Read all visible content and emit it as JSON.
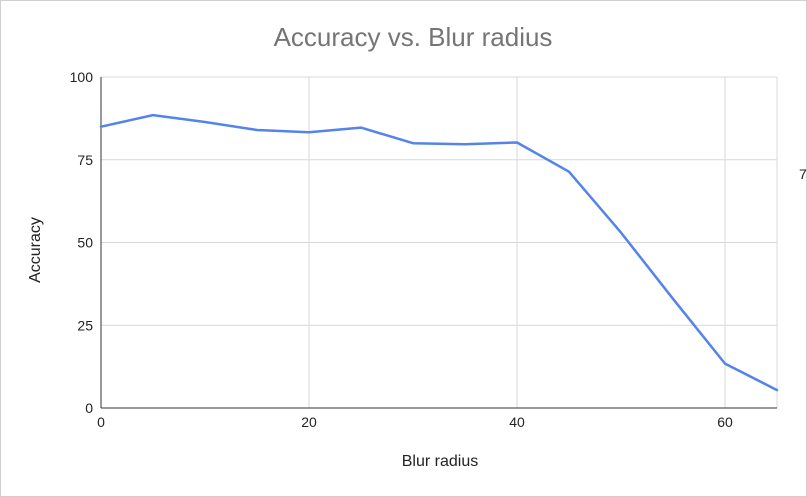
{
  "chart_data": {
    "type": "line",
    "title": "Accuracy vs. Blur radius",
    "xlabel": "Blur radius",
    "ylabel": "Accuracy",
    "xlim": [
      0,
      65
    ],
    "ylim": [
      0,
      100
    ],
    "x_ticks": [
      0,
      20,
      40,
      60
    ],
    "y_ticks": [
      0,
      25,
      50,
      75,
      100
    ],
    "grid": true,
    "legend": "none",
    "series": [
      {
        "color": "#5484ea",
        "x": [
          0,
          5,
          10,
          15,
          20,
          25,
          30,
          35,
          40,
          45,
          50,
          55,
          60,
          65
        ],
        "y": [
          85,
          88.5,
          86.4,
          84,
          83.3,
          84.7,
          80,
          79.7,
          80.2,
          71.4,
          53,
          33,
          13.4,
          5.4
        ]
      }
    ]
  },
  "edge_mark": "7"
}
